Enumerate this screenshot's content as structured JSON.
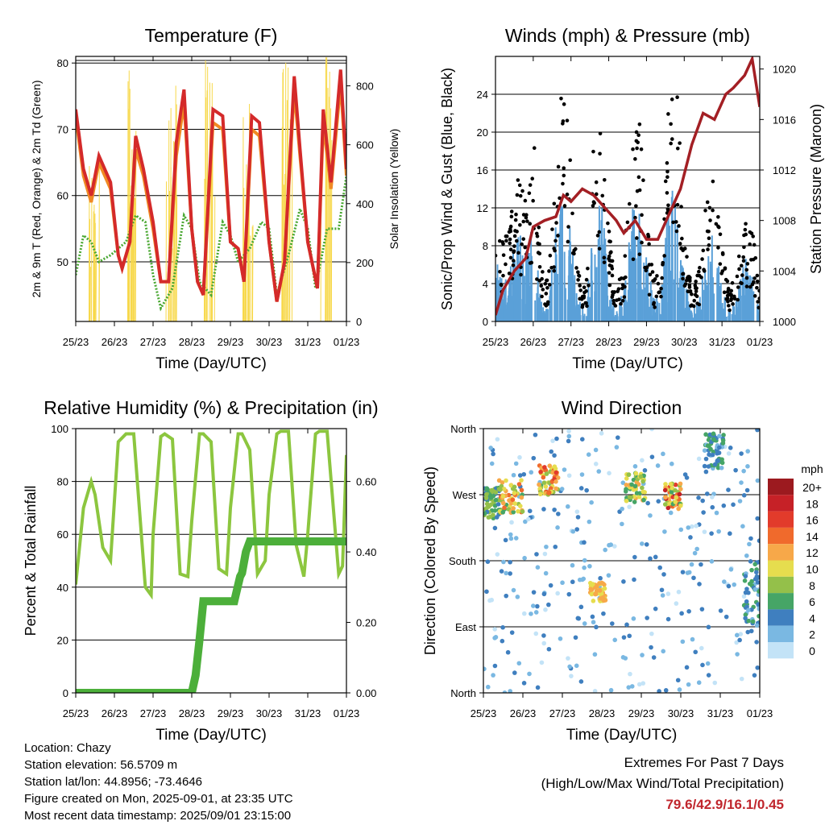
{
  "chart_data": [
    {
      "type": "line",
      "title": "Temperature (F)",
      "xlabel": "Time (Day/UTC)",
      "ylabel": "2m & 9m T (Red, Orange) & 2m Td (Green)",
      "y2label": "Solar Insolation (Yellow)",
      "x_ticks": [
        "25/23",
        "26/23",
        "27/23",
        "28/23",
        "29/23",
        "30/23",
        "31/23",
        "01/23"
      ],
      "xlim": [
        0,
        7
      ],
      "ylim": [
        41,
        81
      ],
      "y_ticks": [
        50,
        60,
        70,
        80
      ],
      "y2lim": [
        0,
        900
      ],
      "y2_ticks": [
        0,
        200,
        400,
        600,
        800
      ],
      "grid": "horizontal",
      "series": [
        {
          "name": "2m T",
          "color": "#d42a2a",
          "x": [
            0,
            0.2,
            0.4,
            0.6,
            0.9,
            1.1,
            1.2,
            1.4,
            1.55,
            1.75,
            2.0,
            2.2,
            2.4,
            2.6,
            2.8,
            3.0,
            3.15,
            3.3,
            3.55,
            3.8,
            4.0,
            4.2,
            4.35,
            4.55,
            4.75,
            5.0,
            5.2,
            5.4,
            5.65,
            5.8,
            6.0,
            6.25,
            6.4,
            6.6,
            6.85,
            7.0
          ],
          "y": [
            73,
            64,
            60,
            66,
            62,
            51,
            49,
            53,
            69,
            64,
            56,
            47,
            47,
            68,
            76,
            55,
            47,
            45,
            73,
            72,
            53,
            52,
            47,
            72,
            71,
            53,
            44,
            50,
            78,
            67,
            53,
            46,
            73,
            62,
            79,
            64
          ]
        },
        {
          "name": "9m T",
          "color": "#f08a24",
          "x": [
            0,
            0.2,
            0.4,
            0.6,
            0.9,
            1.1,
            1.2,
            1.4,
            1.55,
            1.75,
            2.0,
            2.2,
            2.4,
            2.6,
            2.8,
            3.0,
            3.15,
            3.3,
            3.55,
            3.8,
            4.0,
            4.2,
            4.35,
            4.55,
            4.75,
            5.0,
            5.2,
            5.4,
            5.65,
            5.8,
            6.0,
            6.25,
            6.4,
            6.6,
            6.85,
            7.0
          ],
          "y": [
            72,
            63,
            59,
            65,
            61,
            51,
            49,
            53,
            67,
            63,
            55,
            47,
            47,
            66,
            74,
            55,
            47,
            45,
            71,
            70,
            53,
            52,
            47,
            70,
            69,
            53,
            44,
            50,
            76,
            66,
            53,
            46,
            71,
            61,
            77,
            63
          ]
        },
        {
          "name": "2m Td",
          "color": "#4aa832",
          "x": [
            0,
            0.2,
            0.4,
            0.6,
            0.9,
            1.1,
            1.3,
            1.55,
            1.8,
            2.0,
            2.2,
            2.5,
            2.8,
            3.0,
            3.2,
            3.5,
            3.8,
            4.0,
            4.2,
            4.5,
            4.8,
            5.0,
            5.2,
            5.5,
            5.8,
            6.0,
            6.2,
            6.5,
            6.8,
            7.0
          ],
          "y": [
            48,
            54,
            53,
            50,
            51,
            52,
            53,
            57,
            56,
            48,
            43,
            46,
            57,
            55,
            47,
            45,
            56,
            54,
            50,
            52,
            56,
            55,
            45,
            51,
            58,
            55,
            46,
            55,
            55,
            63
          ]
        },
        {
          "name": "Solar Insolation",
          "axis": "right",
          "color": "#f7d84a",
          "x": [
            0,
            0.25,
            0.4,
            0.55,
            0.7,
            0.85,
            1.0,
            1.2,
            1.35,
            1.5,
            1.7,
            1.9,
            2.05,
            2.2,
            2.35,
            2.5,
            2.7,
            2.9,
            3.0,
            3.2,
            3.35,
            3.5,
            3.7,
            3.9,
            4.0,
            4.2,
            4.35,
            4.5,
            4.7,
            4.9,
            5.0,
            5.2,
            5.35,
            5.5,
            5.7,
            5.9,
            6.0,
            6.2,
            6.35,
            6.5,
            6.7,
            6.9,
            7.0
          ],
          "y": [
            0,
            0,
            350,
            650,
            500,
            250,
            0,
            0,
            600,
            820,
            400,
            150,
            0,
            0,
            500,
            780,
            350,
            100,
            0,
            0,
            550,
            850,
            420,
            120,
            0,
            0,
            500,
            800,
            380,
            130,
            0,
            0,
            600,
            880,
            450,
            150,
            0,
            0,
            580,
            860,
            430,
            140,
            0
          ]
        }
      ]
    },
    {
      "type": "scatter",
      "title": "Winds (mph) & Pressure (mb)",
      "xlabel": "Time (Day/UTC)",
      "ylabel": "Sonic/Prop Wind & Gust (Blue, Black)",
      "y2label": "Station Pressure (Maroon)",
      "x_ticks": [
        "25/23",
        "26/23",
        "27/23",
        "28/23",
        "29/23",
        "30/23",
        "31/23",
        "01/23"
      ],
      "xlim": [
        0,
        7
      ],
      "ylim": [
        0,
        28
      ],
      "y_ticks": [
        0,
        4,
        8,
        12,
        16,
        20,
        24
      ],
      "y2lim": [
        1000,
        1021
      ],
      "y2_ticks": [
        1000,
        1004,
        1008,
        1012,
        1016,
        1020
      ],
      "grid": "horizontal",
      "series": [
        {
          "name": "Wind",
          "color": "#5aa0d8",
          "x": [
            0,
            0.2,
            0.4,
            0.6,
            0.8,
            1.0,
            1.2,
            1.4,
            1.6,
            1.8,
            2.0,
            2.2,
            2.4,
            2.6,
            2.8,
            3.0,
            3.2,
            3.4,
            3.6,
            3.8,
            4.0,
            4.2,
            4.4,
            4.6,
            4.8,
            5.0,
            5.2,
            5.4,
            5.6,
            5.8,
            6.0,
            6.2,
            6.4,
            6.6,
            6.8,
            7.0
          ],
          "y": [
            8,
            3,
            5,
            9,
            6,
            10,
            2,
            1,
            9,
            12,
            8,
            2,
            1,
            10,
            12,
            4,
            1,
            3,
            10,
            11,
            6,
            2,
            3,
            12,
            13,
            4,
            1,
            2,
            7,
            8,
            3,
            1,
            2,
            6,
            4,
            1
          ]
        },
        {
          "name": "Gust",
          "color": "#000000",
          "x": [
            0,
            0.2,
            0.4,
            0.6,
            0.8,
            1.0,
            1.2,
            1.4,
            1.6,
            1.8,
            2.0,
            2.2,
            2.4,
            2.6,
            2.8,
            3.0,
            3.2,
            3.4,
            3.6,
            3.8,
            4.0,
            4.2,
            4.4,
            4.6,
            4.8,
            5.0,
            5.2,
            5.4,
            5.6,
            5.8,
            6.0,
            6.2,
            6.4,
            6.6,
            6.8,
            7.0
          ],
          "y": [
            13,
            8,
            10,
            14,
            12,
            19,
            6,
            4,
            16,
            24,
            15,
            5,
            3,
            18,
            23,
            9,
            3,
            6,
            17,
            20,
            10,
            4,
            6,
            22,
            24,
            8,
            3,
            5,
            13,
            14,
            7,
            3,
            5,
            11,
            9,
            3
          ]
        },
        {
          "name": "Pressure",
          "axis": "right",
          "color": "#a31f24",
          "x": [
            0,
            0.2,
            0.5,
            0.8,
            1.0,
            1.3,
            1.6,
            1.8,
            2.0,
            2.3,
            2.6,
            2.9,
            3.2,
            3.4,
            3.7,
            4.0,
            4.3,
            4.6,
            4.9,
            5.2,
            5.5,
            5.8,
            6.1,
            6.3,
            6.6,
            6.8,
            7.0
          ],
          "y": [
            1000.5,
            1002.5,
            1004.0,
            1005.0,
            1007.5,
            1008.0,
            1008.3,
            1010.0,
            1009.5,
            1010.5,
            1010.0,
            1009.0,
            1008.0,
            1007.0,
            1008.0,
            1006.5,
            1006.5,
            1008.5,
            1010.5,
            1014.0,
            1016.5,
            1016.0,
            1018.0,
            1018.5,
            1019.5,
            1020.8,
            1017.0
          ]
        }
      ]
    },
    {
      "type": "line",
      "title": "Relative Humidity (%) & Precipitation (in)",
      "xlabel": "Time (Day/UTC)",
      "ylabel": "Percent & Total Rainfall",
      "x_ticks": [
        "25/23",
        "26/23",
        "27/23",
        "28/23",
        "29/23",
        "30/23",
        "31/23",
        "01/23"
      ],
      "xlim": [
        0,
        7
      ],
      "ylim": [
        0,
        100
      ],
      "y_ticks": [
        0,
        20,
        40,
        60,
        80,
        100
      ],
      "y2lim": [
        0,
        0.75
      ],
      "y2_ticks": [
        "0.00",
        "0.20",
        "0.40",
        "0.60"
      ],
      "grid": "horizontal",
      "series": [
        {
          "name": "Relative Humidity",
          "color": "#8cc63f",
          "x": [
            0,
            0.2,
            0.4,
            0.5,
            0.7,
            0.9,
            1.1,
            1.3,
            1.5,
            1.8,
            1.95,
            2.0,
            2.2,
            2.3,
            2.5,
            2.7,
            2.9,
            3.0,
            3.2,
            3.3,
            3.5,
            3.7,
            3.9,
            4.0,
            4.2,
            4.3,
            4.5,
            4.7,
            4.9,
            5.0,
            5.2,
            5.3,
            5.5,
            5.7,
            5.9,
            6.0,
            6.2,
            6.3,
            6.5,
            6.8,
            6.9,
            7.0
          ],
          "y": [
            41,
            70,
            80,
            75,
            55,
            50,
            95,
            98,
            98,
            40,
            37,
            60,
            97,
            98,
            96,
            45,
            44,
            65,
            98,
            98,
            95,
            47,
            45,
            70,
            98,
            98,
            92,
            45,
            50,
            75,
            98,
            99,
            99,
            56,
            44,
            60,
            98,
            99,
            99,
            45,
            48,
            90
          ]
        },
        {
          "name": "Precipitation",
          "axis": "right",
          "color": "#4caf3a",
          "x": [
            0,
            1.0,
            2.0,
            3.0,
            3.1,
            3.2,
            3.3,
            3.5,
            3.8,
            4.1,
            4.25,
            4.3,
            4.4,
            4.5,
            4.9,
            5.5,
            6.0,
            6.5,
            7.0
          ],
          "y": [
            0.0,
            0.0,
            0.0,
            0.0,
            0.05,
            0.15,
            0.26,
            0.26,
            0.26,
            0.26,
            0.33,
            0.34,
            0.4,
            0.43,
            0.43,
            0.43,
            0.43,
            0.43,
            0.43
          ]
        }
      ]
    },
    {
      "type": "scatter",
      "title": "Wind Direction",
      "xlabel": "Time (Day/UTC)",
      "ylabel": "Direction (Colored By Speed)",
      "x_ticks": [
        "25/23",
        "26/23",
        "27/23",
        "28/23",
        "29/23",
        "30/23",
        "31/23",
        "01/23"
      ],
      "xlim": [
        0,
        7
      ],
      "ylim": [
        0,
        360
      ],
      "y_ticks": [
        "North",
        "East",
        "South",
        "West",
        "North"
      ],
      "grid": "horizontal",
      "legend": {
        "title": "mph",
        "position": "right",
        "labels": [
          "20+",
          "18",
          "16",
          "14",
          "12",
          "10",
          "8",
          "6",
          "4",
          "2",
          "0"
        ],
        "colors": [
          "#9c1a1f",
          "#c62127",
          "#e23b2b",
          "#f06a2c",
          "#f7a849",
          "#e6dd4e",
          "#94c04a",
          "#46a566",
          "#3f7fbf",
          "#7ab8e2",
          "#c3e3f7"
        ]
      },
      "clusters": [
        {
          "x_range": [
            0,
            0.45
          ],
          "dir_range": [
            235,
            280
          ],
          "speed_range": [
            4,
            9
          ]
        },
        {
          "x_range": [
            0.4,
            1.0
          ],
          "dir_range": [
            245,
            290
          ],
          "speed_range": [
            6,
            14
          ]
        },
        {
          "x_range": [
            1.4,
            1.9
          ],
          "dir_range": [
            270,
            310
          ],
          "speed_range": [
            6,
            16
          ]
        },
        {
          "x_range": [
            2.7,
            3.1
          ],
          "dir_range": [
            125,
            150
          ],
          "speed_range": [
            9,
            13
          ]
        },
        {
          "x_range": [
            3.6,
            4.1
          ],
          "dir_range": [
            260,
            300
          ],
          "speed_range": [
            5,
            12
          ]
        },
        {
          "x_range": [
            4.6,
            5.0
          ],
          "dir_range": [
            250,
            285
          ],
          "speed_range": [
            6,
            18
          ]
        },
        {
          "x_range": [
            5.6,
            6.1
          ],
          "dir_range": [
            305,
            355
          ],
          "speed_range": [
            2,
            7
          ]
        },
        {
          "x_range": [
            6.6,
            7.0
          ],
          "dir_range": [
            90,
            180
          ],
          "speed_range": [
            2,
            7
          ]
        }
      ]
    }
  ],
  "info": {
    "location": "Location: Chazy",
    "elevation": "Station elevation: 56.5709 m",
    "latlon": "Station lat/lon: 44.8956; -73.4646",
    "created": "Figure created on Mon, 2025-09-01, at 23:35 UTC",
    "timestamp": "Most recent data timestamp: 2025/09/01 23:15:00"
  },
  "extremes": {
    "heading": "Extremes For Past 7 Days",
    "subheading": "(High/Low/Max Wind/Total Precipitation)",
    "values": "79.6/42.9/16.1/0.45"
  }
}
